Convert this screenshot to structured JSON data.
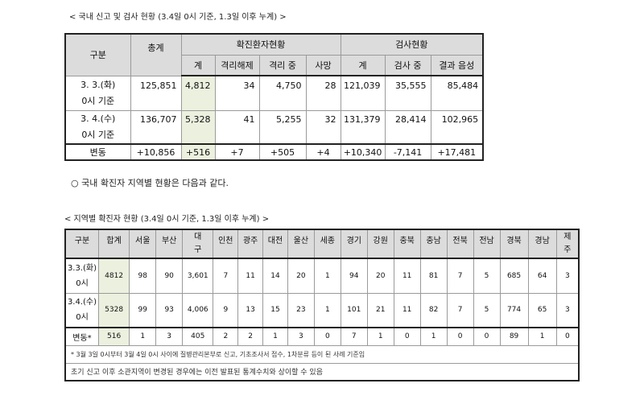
{
  "caption1": "< 국내 신고 및 검사 현황 (3.4일 0시 기준, 1.3일 이후 누계) >",
  "t1": {
    "h_gubun": "구분",
    "h_total": "총계",
    "h_confirmed": "확진환자현황",
    "h_test": "검사현황",
    "sub": [
      "계",
      "격리해제",
      "격리 중",
      "사망",
      "계",
      "검사 중",
      "결과 음성"
    ],
    "rows": [
      {
        "label1": "3. 3.(화)",
        "label2": "0시 기준",
        "cells": [
          "125,851",
          "4,812",
          "34",
          "4,750",
          "28",
          "121,039",
          "35,555",
          "85,484"
        ]
      },
      {
        "label1": "3. 4.(수)",
        "label2": "0시 기준",
        "cells": [
          "136,707",
          "5,328",
          "41",
          "5,255",
          "32",
          "131,379",
          "28,414",
          "102,965"
        ]
      }
    ],
    "change_label": "변동",
    "change": [
      "+10,856",
      "+516",
      "+7",
      "+505",
      "+4",
      "+10,340",
      "-7,141",
      "+17,481"
    ]
  },
  "bullet_text": "○ 국내 확진자 지역별 현황은 다음과 같다.",
  "caption2": "< 지역별 확진자 현황 (3.4일 0시 기준, 1.3일 이후 누계) >",
  "t2": {
    "h_gubun": "구분",
    "h_total": "합계",
    "regions": [
      "서울",
      "부산",
      "대",
      "인천",
      "광주",
      "대전",
      "울산",
      "세종",
      "경기",
      "강원",
      "충북",
      "충남",
      "전북",
      "전남",
      "경북",
      "경남",
      "제"
    ],
    "regions_line2": {
      "daegu": "구",
      "jeju": "주"
    },
    "rows": [
      {
        "label1": "3.3.(화)",
        "label2": "0시",
        "cells": [
          "4812",
          "98",
          "90",
          "3,601",
          "7",
          "11",
          "14",
          "20",
          "1",
          "94",
          "20",
          "11",
          "81",
          "7",
          "5",
          "685",
          "64",
          "3"
        ]
      },
      {
        "label1": "3.4.(수)",
        "label2": "0시",
        "cells": [
          "5328",
          "99",
          "93",
          "4,006",
          "9",
          "13",
          "15",
          "23",
          "1",
          "101",
          "21",
          "11",
          "82",
          "7",
          "5",
          "774",
          "65",
          "3"
        ]
      }
    ],
    "change_label": "변동*",
    "change": [
      "516",
      "1",
      "3",
      "405",
      "2",
      "2",
      "1",
      "3",
      "0",
      "7",
      "1",
      "0",
      "1",
      "0",
      "0",
      "89",
      "1",
      "0"
    ],
    "note1": "* 3월 3일 0시부터 3월 4일 0시 사이에 질병관리본부로 신고, 기초조사서 접수, 1차분류 등이 된 사례 기준임",
    "note2": "초기 신고 이후 소관지역이 변경된 경우에는 이전 발표된 통계수치와 상이할 수 있음"
  }
}
